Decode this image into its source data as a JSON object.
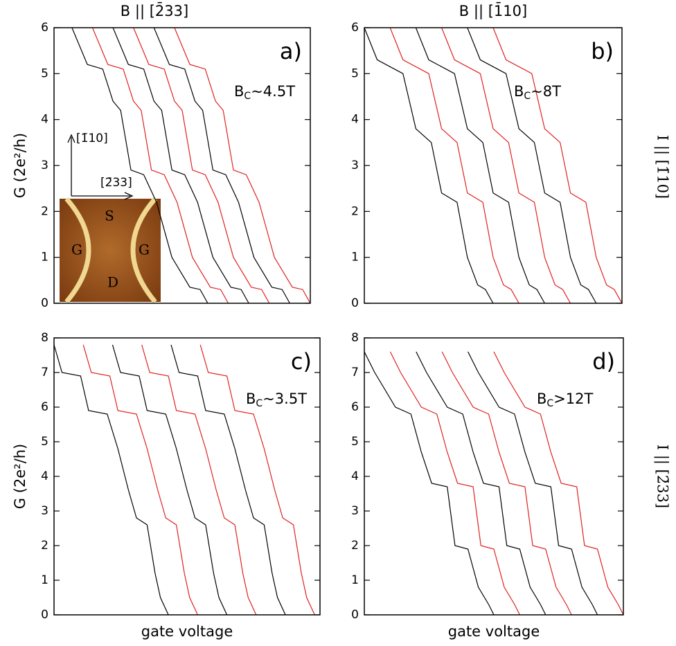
{
  "chart_data": [
    {
      "type": "line",
      "title": "B || [2̄33]",
      "ylabel": "G (2e²/h)",
      "panel_label": "a)",
      "annotation": {
        "main": "B",
        "sub": "C",
        "rest": "~4.5T"
      },
      "xlim": [
        0,
        10
      ],
      "ylim": [
        0,
        6
      ],
      "yticks": [
        0,
        1,
        2,
        3,
        4,
        5,
        6
      ],
      "inset": {
        "up_label": "[1̄10]",
        "right_label": "[2̄33]",
        "source": "S",
        "gate_left": "G",
        "gate_right": "G",
        "drain": "D"
      },
      "series": [
        {
          "color": "#000000",
          "x": [
            0.7,
            1.3,
            1.9,
            2.3,
            2.6,
            3.0,
            3.5,
            4.0,
            4.6,
            5.3,
            5.7,
            6.0
          ],
          "values": [
            6,
            5.2,
            5.1,
            4.4,
            4.2,
            2.9,
            2.8,
            2.2,
            1.0,
            0.35,
            0.3,
            0
          ]
        },
        {
          "color": "#e02020",
          "x": [
            1.5,
            2.1,
            2.7,
            3.1,
            3.4,
            3.8,
            4.3,
            4.8,
            5.4,
            6.1,
            6.5,
            6.8
          ],
          "values": [
            6,
            5.2,
            5.1,
            4.4,
            4.2,
            2.9,
            2.8,
            2.2,
            1.0,
            0.35,
            0.3,
            0
          ]
        },
        {
          "color": "#000000",
          "x": [
            2.3,
            2.9,
            3.5,
            3.9,
            4.2,
            4.6,
            5.1,
            5.6,
            6.2,
            6.9,
            7.3,
            7.6
          ],
          "values": [
            6,
            5.2,
            5.1,
            4.4,
            4.2,
            2.9,
            2.8,
            2.2,
            1.0,
            0.35,
            0.3,
            0
          ]
        },
        {
          "color": "#e02020",
          "x": [
            3.1,
            3.7,
            4.3,
            4.7,
            5.0,
            5.4,
            5.9,
            6.4,
            7.0,
            7.7,
            8.1,
            8.4
          ],
          "values": [
            6,
            5.2,
            5.1,
            4.4,
            4.2,
            2.9,
            2.8,
            2.2,
            1.0,
            0.35,
            0.3,
            0
          ]
        },
        {
          "color": "#000000",
          "x": [
            3.9,
            4.5,
            5.1,
            5.5,
            5.8,
            6.2,
            6.7,
            7.2,
            7.8,
            8.5,
            8.9,
            9.2
          ],
          "values": [
            6,
            5.2,
            5.1,
            4.4,
            4.2,
            2.9,
            2.8,
            2.2,
            1.0,
            0.35,
            0.3,
            0
          ]
        },
        {
          "color": "#e02020",
          "x": [
            4.7,
            5.3,
            5.9,
            6.3,
            6.6,
            7.0,
            7.5,
            8.0,
            8.6,
            9.3,
            9.7,
            10.0
          ],
          "values": [
            6,
            5.2,
            5.1,
            4.4,
            4.2,
            2.9,
            2.8,
            2.2,
            1.0,
            0.35,
            0.3,
            0
          ]
        }
      ]
    },
    {
      "type": "line",
      "title": "B || [1̄10]",
      "side_label": "I || [1̄10]",
      "panel_label": "b)",
      "annotation": {
        "main": "B",
        "sub": "C",
        "rest": "~8T"
      },
      "xlim": [
        0,
        10
      ],
      "ylim": [
        0,
        6
      ],
      "yticks": [
        0,
        1,
        2,
        3,
        4,
        5,
        6
      ],
      "series": [
        {
          "color": "#000000",
          "x": [
            0,
            0.5,
            1.5,
            2.0,
            2.6,
            3.0,
            3.6,
            4.0,
            4.4,
            4.7,
            5.0
          ],
          "values": [
            6,
            5.3,
            5.0,
            3.8,
            3.5,
            2.4,
            2.2,
            1.0,
            0.4,
            0.3,
            0
          ]
        },
        {
          "color": "#e02020",
          "x": [
            1.0,
            1.5,
            2.5,
            3.0,
            3.6,
            4.0,
            4.6,
            5.0,
            5.4,
            5.7,
            6.0
          ],
          "values": [
            6,
            5.3,
            5.0,
            3.8,
            3.5,
            2.4,
            2.2,
            1.0,
            0.4,
            0.3,
            0
          ]
        },
        {
          "color": "#000000",
          "x": [
            2.0,
            2.5,
            3.5,
            4.0,
            4.6,
            5.0,
            5.6,
            6.0,
            6.4,
            6.7,
            7.0
          ],
          "values": [
            6,
            5.3,
            5.0,
            3.8,
            3.5,
            2.4,
            2.2,
            1.0,
            0.4,
            0.3,
            0
          ]
        },
        {
          "color": "#e02020",
          "x": [
            3.0,
            3.5,
            4.5,
            5.0,
            5.6,
            6.0,
            6.6,
            7.0,
            7.4,
            7.7,
            8.0
          ],
          "values": [
            6,
            5.3,
            5.0,
            3.8,
            3.5,
            2.4,
            2.2,
            1.0,
            0.4,
            0.3,
            0
          ]
        },
        {
          "color": "#000000",
          "x": [
            4.0,
            4.5,
            5.5,
            6.0,
            6.6,
            7.0,
            7.6,
            8.0,
            8.4,
            8.7,
            9.0
          ],
          "values": [
            6,
            5.3,
            5.0,
            3.8,
            3.5,
            2.4,
            2.2,
            1.0,
            0.4,
            0.3,
            0
          ]
        },
        {
          "color": "#e02020",
          "x": [
            5.0,
            5.5,
            6.5,
            7.0,
            7.6,
            8.0,
            8.6,
            9.0,
            9.4,
            9.7,
            10.0
          ],
          "values": [
            6,
            5.3,
            5.0,
            3.8,
            3.5,
            2.4,
            2.2,
            1.0,
            0.4,
            0.3,
            0
          ]
        }
      ]
    },
    {
      "type": "line",
      "ylabel": "G (2e²/h)",
      "xlabel": "gate voltage",
      "panel_label": "c)",
      "annotation": {
        "main": "B",
        "sub": "C",
        "rest": "~3.5T"
      },
      "xlim": [
        0,
        10
      ],
      "ylim": [
        0,
        8
      ],
      "yticks": [
        0,
        1,
        2,
        3,
        4,
        5,
        6,
        7,
        8
      ],
      "series": [
        {
          "color": "#000000",
          "x": [
            0,
            0.3,
            1.0,
            1.3,
            2.0,
            2.4,
            2.8,
            3.1,
            3.5,
            3.8,
            4.0,
            4.3
          ],
          "values": [
            7.8,
            7.0,
            6.9,
            5.9,
            5.8,
            4.8,
            3.6,
            2.8,
            2.6,
            1.2,
            0.5,
            0
          ]
        },
        {
          "color": "#e02020",
          "x": [
            1.1,
            1.4,
            2.1,
            2.4,
            3.1,
            3.5,
            3.9,
            4.2,
            4.6,
            4.9,
            5.1,
            5.4
          ],
          "values": [
            7.8,
            7.0,
            6.9,
            5.9,
            5.8,
            4.8,
            3.6,
            2.8,
            2.6,
            1.2,
            0.5,
            0
          ]
        },
        {
          "color": "#000000",
          "x": [
            2.2,
            2.5,
            3.2,
            3.5,
            4.2,
            4.6,
            5.0,
            5.3,
            5.7,
            6.0,
            6.2,
            6.5
          ],
          "values": [
            7.8,
            7.0,
            6.9,
            5.9,
            5.8,
            4.8,
            3.6,
            2.8,
            2.6,
            1.2,
            0.5,
            0
          ]
        },
        {
          "color": "#e02020",
          "x": [
            3.3,
            3.6,
            4.3,
            4.6,
            5.3,
            5.7,
            6.1,
            6.4,
            6.8,
            7.1,
            7.3,
            7.6
          ],
          "values": [
            7.8,
            7.0,
            6.9,
            5.9,
            5.8,
            4.8,
            3.6,
            2.8,
            2.6,
            1.2,
            0.5,
            0
          ]
        },
        {
          "color": "#000000",
          "x": [
            4.4,
            4.7,
            5.4,
            5.7,
            6.4,
            6.8,
            7.2,
            7.5,
            7.9,
            8.2,
            8.4,
            8.7
          ],
          "values": [
            7.8,
            7.0,
            6.9,
            5.9,
            5.8,
            4.8,
            3.6,
            2.8,
            2.6,
            1.2,
            0.5,
            0
          ]
        },
        {
          "color": "#e02020",
          "x": [
            5.5,
            5.8,
            6.5,
            6.8,
            7.5,
            7.9,
            8.3,
            8.6,
            9.0,
            9.3,
            9.5,
            9.8
          ],
          "values": [
            7.8,
            7.0,
            6.9,
            5.9,
            5.8,
            4.8,
            3.6,
            2.8,
            2.6,
            1.2,
            0.5,
            0
          ]
        }
      ]
    },
    {
      "type": "line",
      "xlabel": "gate voltage",
      "side_label": "I || [2̄33]",
      "panel_label": "d)",
      "annotation": {
        "main": "B",
        "sub": "C",
        "rest": ">12T"
      },
      "xlim": [
        0,
        10
      ],
      "ylim": [
        0,
        8
      ],
      "yticks": [
        0,
        1,
        2,
        3,
        4,
        5,
        6,
        7,
        8
      ],
      "series": [
        {
          "color": "#000000",
          "x": [
            0,
            0.4,
            1.2,
            1.8,
            2.2,
            2.6,
            3.2,
            3.5,
            4.0,
            4.4,
            4.8,
            5.0
          ],
          "values": [
            7.6,
            7.0,
            6.0,
            5.8,
            4.7,
            3.8,
            3.7,
            2.0,
            1.9,
            0.8,
            0.3,
            0
          ]
        },
        {
          "color": "#e02020",
          "x": [
            1,
            1.4,
            2.2,
            2.8,
            3.2,
            3.6,
            4.2,
            4.5,
            5.0,
            5.4,
            5.8,
            6.0
          ],
          "values": [
            7.6,
            7.0,
            6.0,
            5.8,
            4.7,
            3.8,
            3.7,
            2.0,
            1.9,
            0.8,
            0.3,
            0
          ]
        },
        {
          "color": "#000000",
          "x": [
            2,
            2.4,
            3.2,
            3.8,
            4.2,
            4.6,
            5.2,
            5.5,
            6.0,
            6.4,
            6.8,
            7.0
          ],
          "values": [
            7.6,
            7.0,
            6.0,
            5.8,
            4.7,
            3.8,
            3.7,
            2.0,
            1.9,
            0.8,
            0.3,
            0
          ]
        },
        {
          "color": "#e02020",
          "x": [
            3,
            3.4,
            4.2,
            4.8,
            5.2,
            5.6,
            6.2,
            6.5,
            7.0,
            7.4,
            7.8,
            8.0
          ],
          "values": [
            7.6,
            7.0,
            6.0,
            5.8,
            4.7,
            3.8,
            3.7,
            2.0,
            1.9,
            0.8,
            0.3,
            0
          ]
        },
        {
          "color": "#000000",
          "x": [
            4,
            4.4,
            5.2,
            5.8,
            6.2,
            6.6,
            7.2,
            7.5,
            8.0,
            8.4,
            8.8,
            9.0
          ],
          "values": [
            7.6,
            7.0,
            6.0,
            5.8,
            4.7,
            3.8,
            3.7,
            2.0,
            1.9,
            0.8,
            0.3,
            0
          ]
        },
        {
          "color": "#e02020",
          "x": [
            5,
            5.4,
            6.2,
            6.8,
            7.2,
            7.6,
            8.2,
            8.5,
            9.0,
            9.4,
            9.8,
            10.0
          ],
          "values": [
            7.6,
            7.0,
            6.0,
            5.8,
            4.7,
            3.8,
            3.7,
            2.0,
            1.9,
            0.8,
            0.3,
            0
          ]
        }
      ]
    }
  ]
}
